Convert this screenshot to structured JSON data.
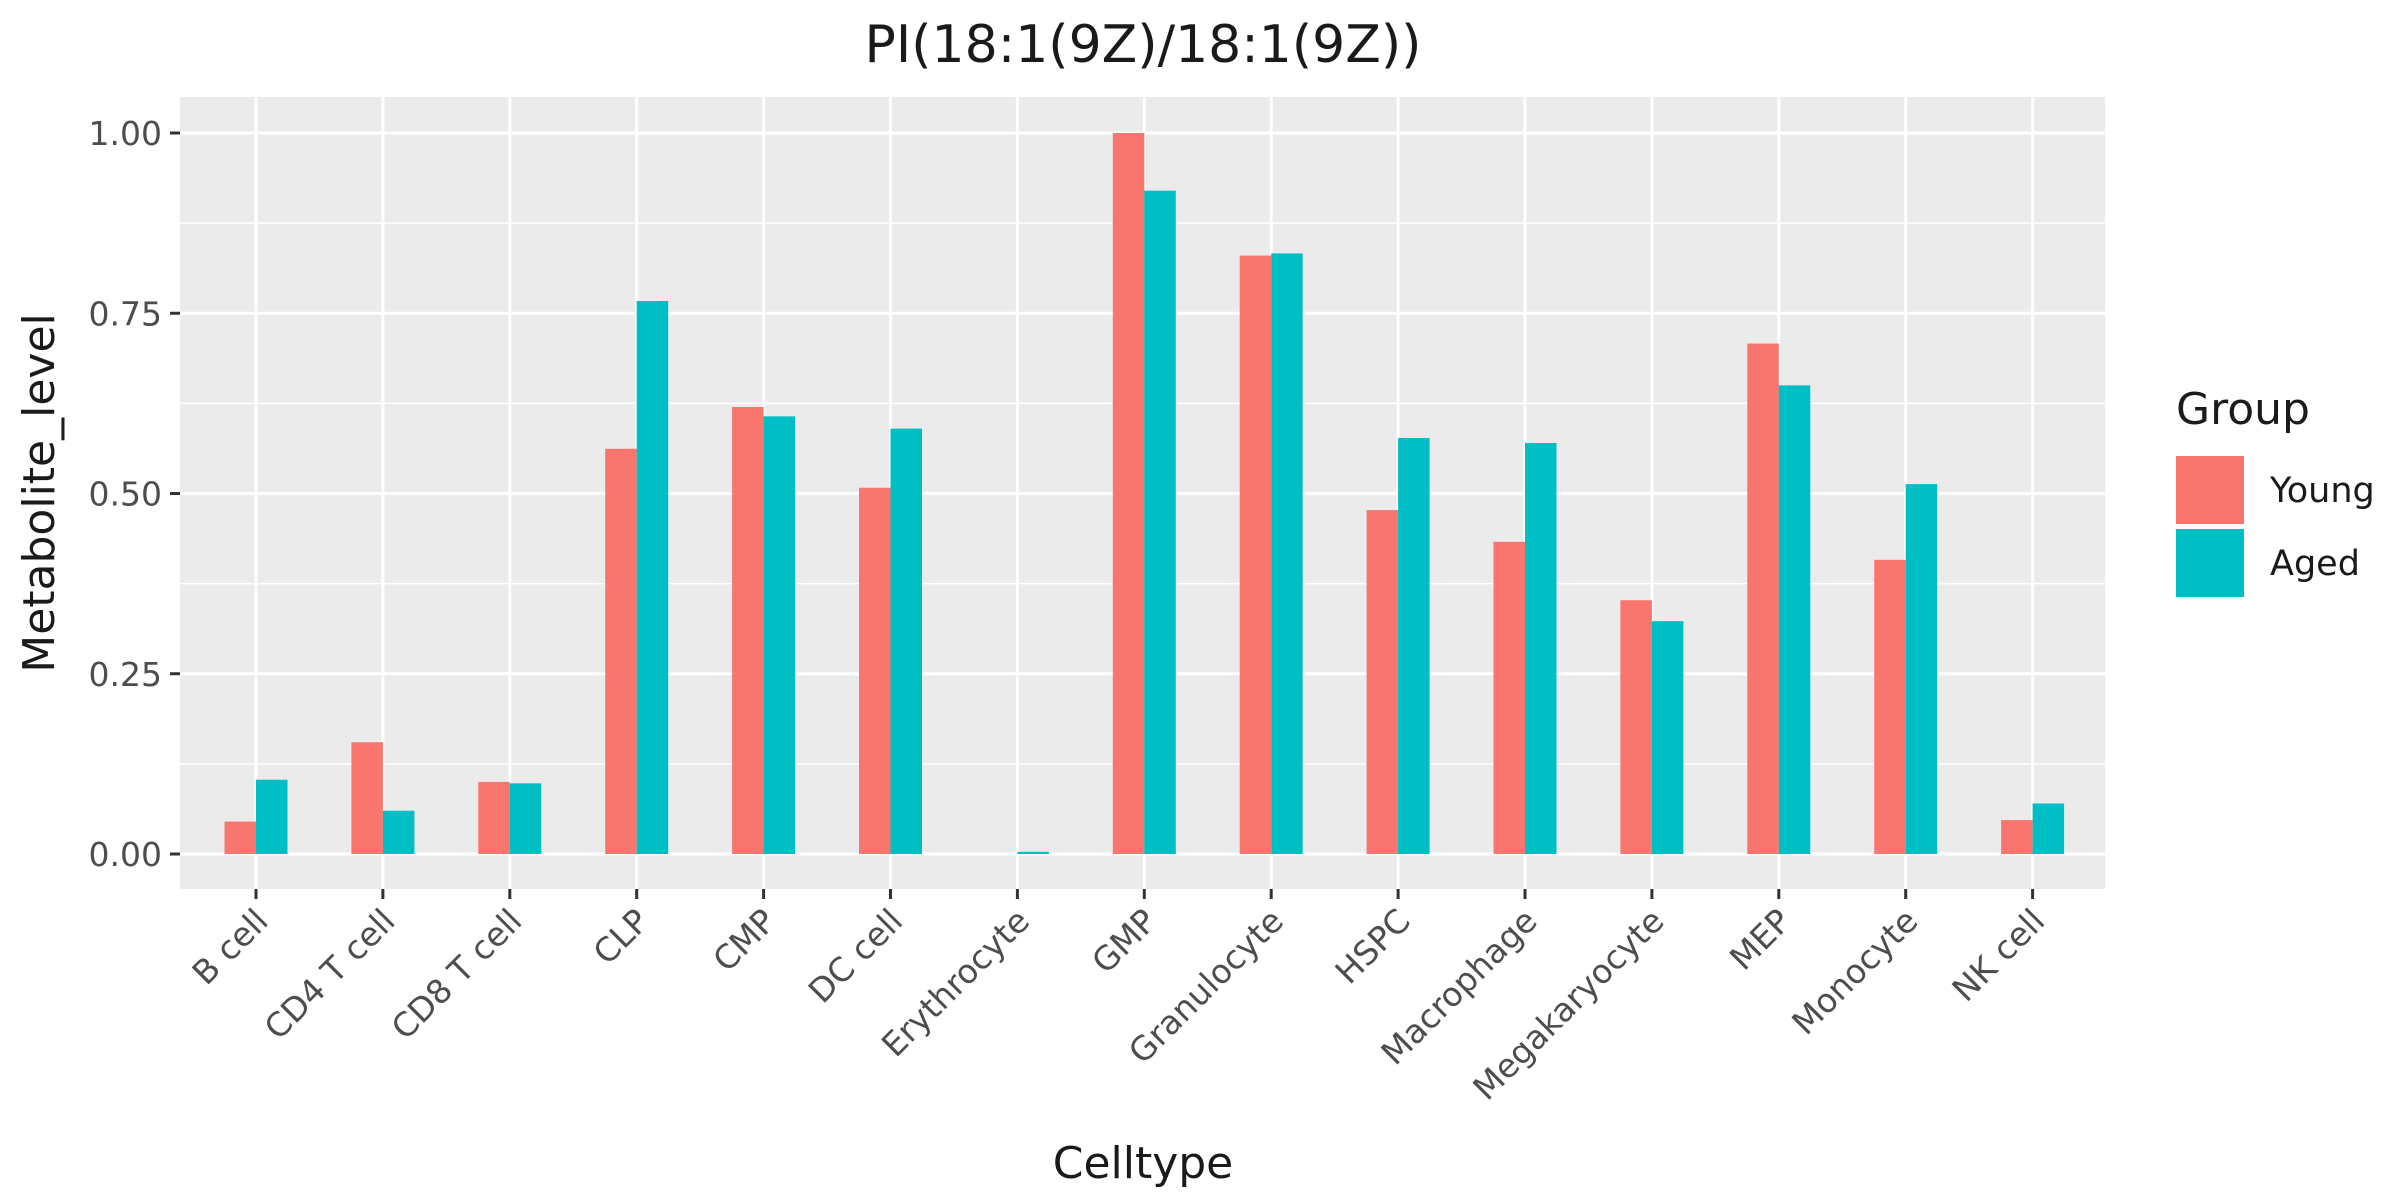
{
  "chart_data": {
    "type": "bar",
    "title": "PI(18:1(9Z)/18:1(9Z))",
    "xlabel": "Celltype",
    "ylabel": "Metabolite_level",
    "ylim": [
      0,
      1.05
    ],
    "yticks": [
      0,
      0.25,
      0.5,
      0.75,
      1.0
    ],
    "ytick_labels": [
      "0.00",
      "0.25",
      "0.50",
      "0.75",
      "1.00"
    ],
    "grid": true,
    "legend_position": "right",
    "legend_title": "Group",
    "categories": [
      "B cell",
      "CD4 T cell",
      "CD8 T cell",
      "CLP",
      "CMP",
      "DC cell",
      "Erythrocyte",
      "GMP",
      "Granulocyte",
      "HSPC",
      "Macrophage",
      "Megakaryocyte",
      "MEP",
      "Monocyte",
      "NK cell"
    ],
    "series": [
      {
        "name": "Young",
        "color": "#F8766D",
        "values": [
          0.045,
          0.155,
          0.1,
          0.562,
          0.62,
          0.508,
          0.0,
          1.0,
          0.83,
          0.477,
          0.433,
          0.352,
          0.708,
          0.408,
          0.047
        ]
      },
      {
        "name": "Aged",
        "color": "#00BFC4",
        "values": [
          0.103,
          0.06,
          0.098,
          0.767,
          0.607,
          0.59,
          0.003,
          0.92,
          0.833,
          0.577,
          0.57,
          0.323,
          0.65,
          0.513,
          0.07
        ]
      }
    ]
  }
}
